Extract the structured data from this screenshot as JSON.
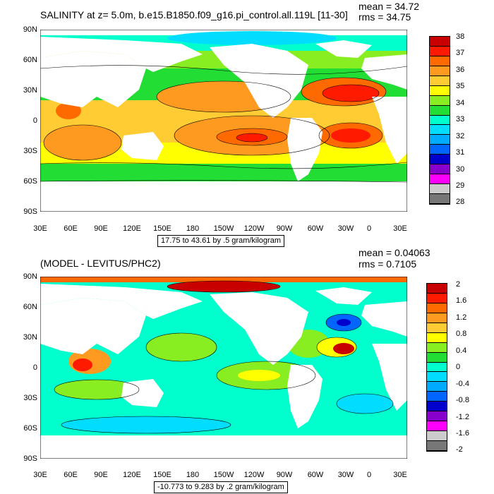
{
  "top": {
    "title": "SALINITY at z=   5.0m, b.e15.B1850.f09_g16.pi_control.all.119L [11-30]",
    "mean": "mean = 34.72",
    "rms": "rms = 34.75",
    "range_note": "17.75 to 43.61 by .5 gram/kilogram",
    "colorbar_labels": [
      "38",
      "37",
      "36",
      "35",
      "34",
      "33",
      "32",
      "31",
      "30",
      "29",
      "28"
    ],
    "colorbar_colors": [
      "#c80000",
      "#ff1a00",
      "#ff6a00",
      "#ff9a20",
      "#ffcc33",
      "#ffff00",
      "#88ee22",
      "#22dd33",
      "#00ffcc",
      "#00ddff",
      "#00aaff",
      "#0066ff",
      "#0000cc",
      "#8800cc",
      "#ff00ff",
      "#cccccc",
      "#777777"
    ]
  },
  "bottom": {
    "title": "(MODEL - LEVITUS/PHC2)",
    "mean": "mean = 0.04063",
    "rms": "rms = 0.7105",
    "range_note": "-10.773 to 9.283 by .2 gram/kilogram",
    "colorbar_labels": [
      "2",
      "1.6",
      "1.2",
      "0.8",
      "0.4",
      "0",
      "-0.4",
      "-0.8",
      "-1.2",
      "-1.6",
      "-2"
    ],
    "colorbar_colors": [
      "#c80000",
      "#ff1a00",
      "#ff6a00",
      "#ff9a20",
      "#ffcc33",
      "#ffff00",
      "#88ee22",
      "#22dd33",
      "#00ffcc",
      "#00ddff",
      "#00aaff",
      "#0066ff",
      "#0000cc",
      "#8800cc",
      "#ff00ff",
      "#cccccc",
      "#777777"
    ]
  },
  "axes": {
    "lat_labels": [
      "90N",
      "60N",
      "30N",
      "0",
      "30S",
      "60S",
      "90S"
    ],
    "lon_labels": [
      "30E",
      "60E",
      "90E",
      "120E",
      "150E",
      "180",
      "150W",
      "120W",
      "90W",
      "60W",
      "30W",
      "0",
      "30E"
    ]
  }
}
